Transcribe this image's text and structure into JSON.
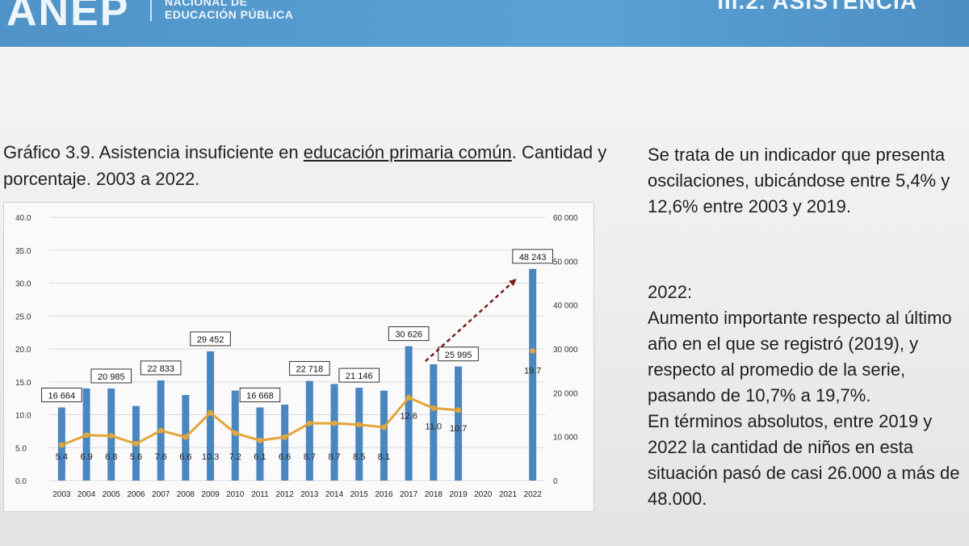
{
  "header": {
    "logo": "ANEP",
    "org_line1": "NACIONAL DE",
    "org_line2": "EDUCACIÓN PÚBLICA",
    "section": "III.2. ASISTENCIA"
  },
  "caption": {
    "before": "Gráfico 3.9. Asistencia insuficiente en ",
    "underlined": "educación primaria común",
    "after": ". Cantidad y porcentaje. 2003 a 2022."
  },
  "right_text": {
    "intro": "Se trata de un indicador que presenta oscilaciones, ubicándose entre 5,4% y 12,6% entre 2003 y 2019.",
    "year_heading": "2022:",
    "body": "Aumento importante respecto al último año en el que se registró (2019), y respecto al promedio de la serie, pasando de 10,7% a 19,7%.",
    "body2": "En términos absolutos, entre 2019 y 2022 la cantidad de niños en esta situación pasó de casi 26.000 a más de 48.000."
  },
  "colors": {
    "bars": "#4a86c0",
    "line": "#e2a63a",
    "arrow": "#7a1f1f",
    "header": "#5aa2d6"
  },
  "chart_data": {
    "type": "bar",
    "categories": [
      "2003",
      "2004",
      "2005",
      "2006",
      "2007",
      "2008",
      "2009",
      "2010",
      "2011",
      "2012",
      "2013",
      "2014",
      "2015",
      "2016",
      "2017",
      "2018",
      "2019",
      "2020",
      "2021",
      "2022"
    ],
    "series": [
      {
        "axis": "right",
        "kind": "bar",
        "values": [
          16664,
          21000,
          20985,
          17000,
          22833,
          19500,
          29452,
          20500,
          16668,
          17300,
          22718,
          22000,
          21146,
          20500,
          30626,
          26500,
          25995,
          null,
          null,
          48243
        ],
        "labels": [
          "16 664",
          null,
          "20 985",
          null,
          "22 833",
          null,
          "29 452",
          null,
          "16 668",
          null,
          "22 718",
          null,
          "21 146",
          null,
          "30 626",
          null,
          "25 995",
          null,
          null,
          "48 243"
        ]
      },
      {
        "axis": "left",
        "kind": "line",
        "values": [
          5.4,
          6.9,
          6.8,
          5.6,
          7.6,
          6.6,
          10.3,
          7.2,
          6.1,
          6.6,
          8.7,
          8.7,
          8.5,
          8.1,
          12.6,
          11.0,
          10.7,
          null,
          null,
          19.7
        ],
        "labels": [
          "5.4",
          "6.9",
          "6.8",
          "5.6",
          "7.6",
          "6.6",
          "10.3",
          "7.2",
          "6.1",
          "6.6",
          "8.7",
          "8.7",
          "8.5",
          "8.1",
          "12.6",
          "11.0",
          "10.7",
          null,
          null,
          "19.7"
        ]
      }
    ],
    "y_left_ticks": [
      "0.0",
      "5.0",
      "10.0",
      "15.0",
      "20.0",
      "25.0",
      "30.0",
      "35.0",
      "40.0"
    ],
    "y_left_range": [
      0,
      40
    ],
    "y_right_ticks": [
      "0",
      "10 000",
      "20 000",
      "30 000",
      "40 000",
      "50 000",
      "60 000"
    ],
    "y_right_range": [
      0,
      60000
    ],
    "grid": true,
    "annotation": "arrow from 2018 toward 2022 label"
  }
}
